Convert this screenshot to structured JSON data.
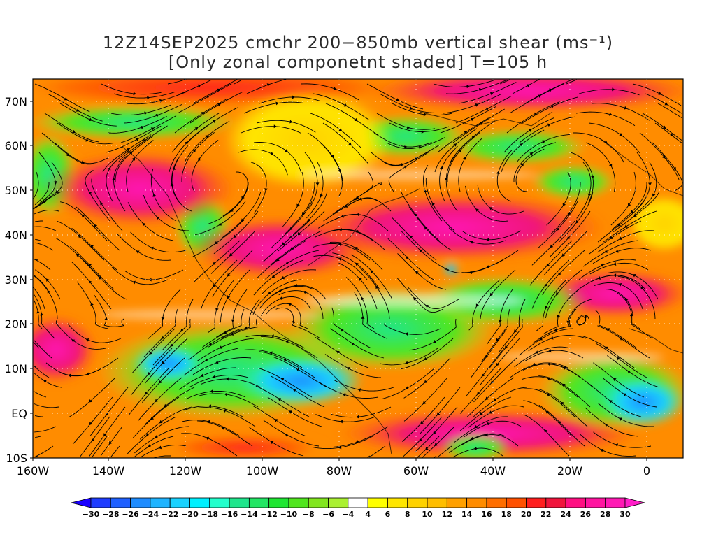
{
  "title": {
    "line1": "12Z14SEP2025 cmchr 200−850mb vertical shear (ms⁻¹)",
    "line2": "[Only zonal componetnt shaded] T=105 h"
  },
  "map": {
    "lat_labels": [
      "70N",
      "60N",
      "50N",
      "40N",
      "30N",
      "20N",
      "10N",
      "EQ",
      "10S"
    ],
    "lon_labels": [
      "160W",
      "140W",
      "120W",
      "100W",
      "80W",
      "60W",
      "40W",
      "20W",
      "0"
    ],
    "lon_range": [
      -160,
      10
    ],
    "lat_range": [
      -10,
      75
    ],
    "field": "zonal component of 200-850mb vertical shear",
    "overlay": "shear streamlines and coastlines"
  },
  "colorbar": {
    "labels": [
      "−30",
      "−28",
      "−26",
      "−24",
      "−22",
      "−20",
      "−18",
      "−16",
      "−14",
      "−12",
      "−10",
      "−8",
      "−6",
      "−4",
      "4",
      "6",
      "8",
      "10",
      "12",
      "14",
      "16",
      "18",
      "20",
      "22",
      "24",
      "26",
      "28",
      "30"
    ],
    "colors": [
      "#1a00ff",
      "#1e3cff",
      "#1f60ff",
      "#1e8cff",
      "#1eb4ff",
      "#19d2ff",
      "#00f0ff",
      "#22ffcc",
      "#1fe68c",
      "#22e664",
      "#1fe632",
      "#50e61e",
      "#82e61e",
      "#aaf032",
      "#ffffff",
      "#ffff00",
      "#ffe600",
      "#ffd200",
      "#ffbe00",
      "#ffa000",
      "#ff8c00",
      "#ff6e00",
      "#ff5000",
      "#ff1e1e",
      "#f0143c",
      "#ff0f82",
      "#ff14a0",
      "#ff19b4",
      "#ff1ec8"
    ]
  }
}
